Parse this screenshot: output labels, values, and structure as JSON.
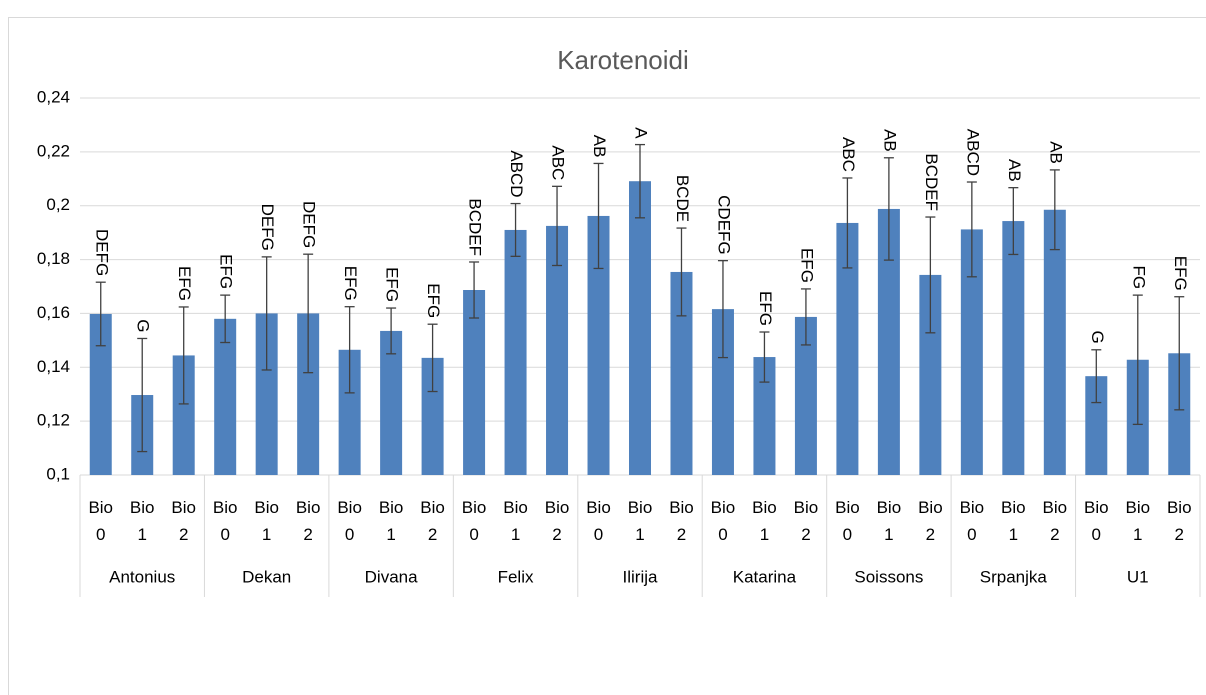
{
  "chart_data": {
    "type": "bar",
    "title": "Karotenoidi",
    "categories": [
      "Bio 0",
      "Bio 1",
      "Bio 2",
      "Bio 0",
      "Bio 1",
      "Bio 2",
      "Bio 0",
      "Bio 1",
      "Bio 2",
      "Bio 0",
      "Bio 1",
      "Bio 2",
      "Bio 0",
      "Bio 1",
      "Bio 2",
      "Bio 0",
      "Bio 1",
      "Bio 2",
      "Bio 0",
      "Bio 1",
      "Bio 2",
      "Bio 0",
      "Bio 1",
      "Bio 2",
      "Bio 0",
      "Bio 1",
      "Bio 2"
    ],
    "groups": [
      "Antonius",
      "Dekan",
      "Divana",
      "Felix",
      "Ilirija",
      "Katarina",
      "Soissons",
      "Srpanjka",
      "U1"
    ],
    "values": [
      0.1598,
      0.1297,
      0.1444,
      0.158,
      0.16,
      0.16,
      0.1465,
      0.1535,
      0.1435,
      0.1687,
      0.191,
      0.1925,
      0.1962,
      0.2091,
      0.1754,
      0.1616,
      0.1438,
      0.1587,
      0.1936,
      0.1988,
      0.1743,
      0.1912,
      0.1943,
      0.1985,
      0.1367,
      0.1428,
      0.1452
    ],
    "errors": [
      0.0118,
      0.021,
      0.018,
      0.0088,
      0.021,
      0.022,
      0.016,
      0.0085,
      0.0125,
      0.0104,
      0.0098,
      0.0147,
      0.0195,
      0.0136,
      0.0163,
      0.018,
      0.0093,
      0.0104,
      0.0167,
      0.019,
      0.0215,
      0.0176,
      0.0124,
      0.0148,
      0.0098,
      0.024,
      0.021
    ],
    "value_labels": [
      "DEFG",
      "G",
      "EFG",
      "EFG",
      "DEFG",
      "DEFG",
      "EFG",
      "EFG",
      "EFG",
      "BCDEF",
      "ABCD",
      "ABC",
      "AB",
      "A",
      "BCDE",
      "CDEFG",
      "EFG",
      "EFG",
      "ABC",
      "AB",
      "BCDEF",
      "ABCD",
      "AB",
      "AB",
      "G",
      "FG",
      "EFG"
    ],
    "color": "#4f81bd",
    "error_color": "#404040",
    "ylim": [
      0.1,
      0.24
    ],
    "yticks": [
      {
        "value": 0.1,
        "label": "0,1"
      },
      {
        "value": 0.12,
        "label": "0,12"
      },
      {
        "value": 0.14,
        "label": "0,14"
      },
      {
        "value": 0.16,
        "label": "0,16"
      },
      {
        "value": 0.18,
        "label": "0,18"
      },
      {
        "value": 0.2,
        "label": "0,2"
      },
      {
        "value": 0.22,
        "label": "0,22"
      },
      {
        "value": 0.24,
        "label": "0,24"
      }
    ],
    "grid": true
  }
}
